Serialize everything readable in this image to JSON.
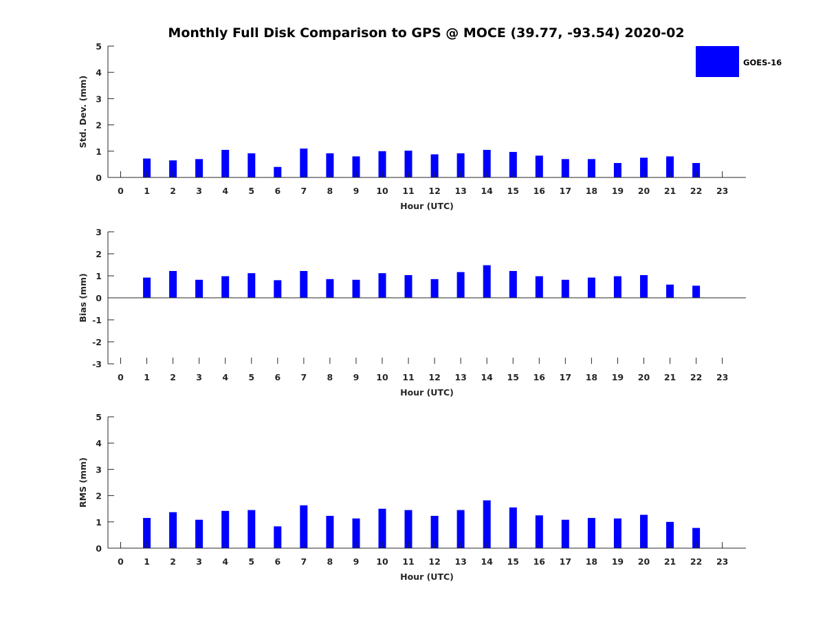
{
  "title": "Monthly Full Disk Comparison to GPS @ MOCE (39.77, -93.54) 2020-02",
  "legend": {
    "label": "GOES-16",
    "color": "#0000ff",
    "placement": "top-right"
  },
  "chart_data": [
    {
      "type": "bar",
      "name": "std-dev",
      "xlabel": "Hour (UTC)",
      "ylabel": "Std. Dev. (mm)",
      "ylim": [
        0,
        5
      ],
      "yticks": [
        0,
        1,
        2,
        3,
        4,
        5
      ],
      "categories": [
        "0",
        "1",
        "2",
        "3",
        "4",
        "5",
        "6",
        "7",
        "8",
        "9",
        "10",
        "11",
        "12",
        "13",
        "14",
        "15",
        "16",
        "17",
        "18",
        "19",
        "20",
        "21",
        "22",
        "23"
      ],
      "series": [
        {
          "name": "GOES-16",
          "values": [
            null,
            0.72,
            0.65,
            0.7,
            1.05,
            0.92,
            0.4,
            1.1,
            0.92,
            0.8,
            1.0,
            1.02,
            0.88,
            0.92,
            1.05,
            0.97,
            0.83,
            0.7,
            0.7,
            0.55,
            0.75,
            0.8,
            0.55,
            null
          ]
        }
      ]
    },
    {
      "type": "bar",
      "name": "bias",
      "xlabel": "Hour (UTC)",
      "ylabel": "Bias (mm)",
      "ylim": [
        -3,
        3
      ],
      "yticks": [
        -3,
        -2,
        -1,
        0,
        1,
        2,
        3
      ],
      "categories": [
        "0",
        "1",
        "2",
        "3",
        "4",
        "5",
        "6",
        "7",
        "8",
        "9",
        "10",
        "11",
        "12",
        "13",
        "14",
        "15",
        "16",
        "17",
        "18",
        "19",
        "20",
        "21",
        "22",
        "23"
      ],
      "series": [
        {
          "name": "GOES-16",
          "values": [
            null,
            0.92,
            1.22,
            0.82,
            0.98,
            1.12,
            0.8,
            1.22,
            0.85,
            0.82,
            1.12,
            1.03,
            0.85,
            1.17,
            1.48,
            1.22,
            0.98,
            0.82,
            0.92,
            0.98,
            1.03,
            0.6,
            0.55,
            null
          ]
        }
      ]
    },
    {
      "type": "bar",
      "name": "rms",
      "xlabel": "Hour (UTC)",
      "ylabel": "RMS (mm)",
      "ylim": [
        0,
        5
      ],
      "yticks": [
        0,
        1,
        2,
        3,
        4,
        5
      ],
      "categories": [
        "0",
        "1",
        "2",
        "3",
        "4",
        "5",
        "6",
        "7",
        "8",
        "9",
        "10",
        "11",
        "12",
        "13",
        "14",
        "15",
        "16",
        "17",
        "18",
        "19",
        "20",
        "21",
        "22",
        "23"
      ],
      "series": [
        {
          "name": "GOES-16",
          "values": [
            null,
            1.15,
            1.37,
            1.08,
            1.42,
            1.45,
            0.83,
            1.63,
            1.23,
            1.13,
            1.5,
            1.45,
            1.23,
            1.45,
            1.82,
            1.55,
            1.25,
            1.08,
            1.15,
            1.13,
            1.27,
            1.0,
            0.77,
            null
          ]
        }
      ]
    }
  ]
}
